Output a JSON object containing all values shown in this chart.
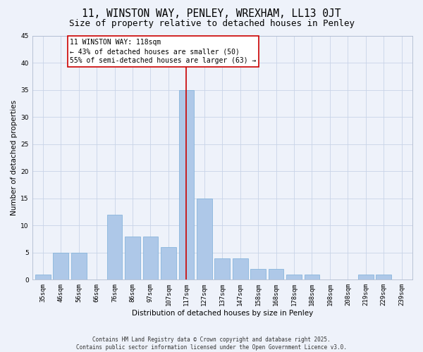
{
  "title": "11, WINSTON WAY, PENLEY, WREXHAM, LL13 0JT",
  "subtitle": "Size of property relative to detached houses in Penley",
  "xlabel": "Distribution of detached houses by size in Penley",
  "ylabel": "Number of detached properties",
  "categories": [
    "35sqm",
    "46sqm",
    "56sqm",
    "66sqm",
    "76sqm",
    "86sqm",
    "97sqm",
    "107sqm",
    "117sqm",
    "127sqm",
    "137sqm",
    "147sqm",
    "158sqm",
    "168sqm",
    "178sqm",
    "188sqm",
    "198sqm",
    "208sqm",
    "219sqm",
    "229sqm",
    "239sqm"
  ],
  "values": [
    1,
    5,
    5,
    0,
    12,
    8,
    8,
    6,
    35,
    15,
    4,
    4,
    2,
    2,
    1,
    1,
    0,
    0,
    1,
    1,
    0
  ],
  "bar_color": "#aec8e8",
  "bar_edge_color": "#7aaed8",
  "grid_color": "#c8d4e8",
  "background_color": "#eef2fa",
  "vline_x_index": 8,
  "vline_color": "#cc0000",
  "annotation_text": "11 WINSTON WAY: 118sqm\n← 43% of detached houses are smaller (50)\n55% of semi-detached houses are larger (63) →",
  "annotation_box_color": "#ffffff",
  "annotation_box_edge_color": "#cc0000",
  "ylim": [
    0,
    45
  ],
  "yticks": [
    0,
    5,
    10,
    15,
    20,
    25,
    30,
    35,
    40,
    45
  ],
  "footer_text": "Contains HM Land Registry data © Crown copyright and database right 2025.\nContains public sector information licensed under the Open Government Licence v3.0.",
  "title_fontsize": 10.5,
  "subtitle_fontsize": 9,
  "axis_label_fontsize": 7.5,
  "tick_fontsize": 6.5,
  "annotation_fontsize": 7,
  "ylabel_fontsize": 7.5,
  "footer_fontsize": 5.5
}
